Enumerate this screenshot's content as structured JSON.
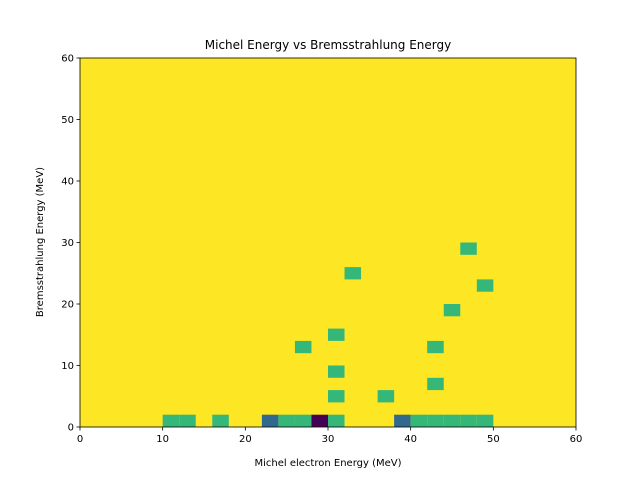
{
  "chart_data": {
    "type": "heatmap",
    "title": "Michel Energy vs Bremsstrahlung Energy",
    "xlabel": "Michel electron Energy (MeV)",
    "ylabel": "Bremsstrahlung Energy (MeV)",
    "xlim": [
      0,
      60
    ],
    "ylim": [
      0,
      60
    ],
    "xticks": [
      0,
      10,
      20,
      30,
      40,
      50,
      60
    ],
    "yticks": [
      0,
      10,
      20,
      30,
      40,
      50,
      60
    ],
    "grid": false,
    "bin_width_x": 2,
    "bin_height_y": 2,
    "background_color": "#fde725",
    "color_levels": {
      "0": "#fde725",
      "1": "#35b779",
      "2": "#31688e",
      "3": "#440154"
    },
    "cells": [
      {
        "x": 11,
        "y": 1,
        "level": 1
      },
      {
        "x": 13,
        "y": 1,
        "level": 1
      },
      {
        "x": 17,
        "y": 1,
        "level": 1
      },
      {
        "x": 23,
        "y": 1,
        "level": 2
      },
      {
        "x": 25,
        "y": 1,
        "level": 1
      },
      {
        "x": 27,
        "y": 1,
        "level": 1
      },
      {
        "x": 29,
        "y": 1,
        "level": 3
      },
      {
        "x": 31,
        "y": 1,
        "level": 1
      },
      {
        "x": 39,
        "y": 1,
        "level": 2
      },
      {
        "x": 41,
        "y": 1,
        "level": 1
      },
      {
        "x": 43,
        "y": 1,
        "level": 1
      },
      {
        "x": 45,
        "y": 1,
        "level": 1
      },
      {
        "x": 47,
        "y": 1,
        "level": 1
      },
      {
        "x": 49,
        "y": 1,
        "level": 1
      },
      {
        "x": 31,
        "y": 5,
        "level": 1
      },
      {
        "x": 37,
        "y": 5,
        "level": 1
      },
      {
        "x": 43,
        "y": 7,
        "level": 1
      },
      {
        "x": 31,
        "y": 9,
        "level": 1
      },
      {
        "x": 27,
        "y": 13,
        "level": 1
      },
      {
        "x": 43,
        "y": 13,
        "level": 1
      },
      {
        "x": 31,
        "y": 15,
        "level": 1
      },
      {
        "x": 45,
        "y": 19,
        "level": 1
      },
      {
        "x": 49,
        "y": 23,
        "level": 1
      },
      {
        "x": 33,
        "y": 25,
        "level": 1
      },
      {
        "x": 47,
        "y": 29,
        "level": 1
      }
    ]
  }
}
